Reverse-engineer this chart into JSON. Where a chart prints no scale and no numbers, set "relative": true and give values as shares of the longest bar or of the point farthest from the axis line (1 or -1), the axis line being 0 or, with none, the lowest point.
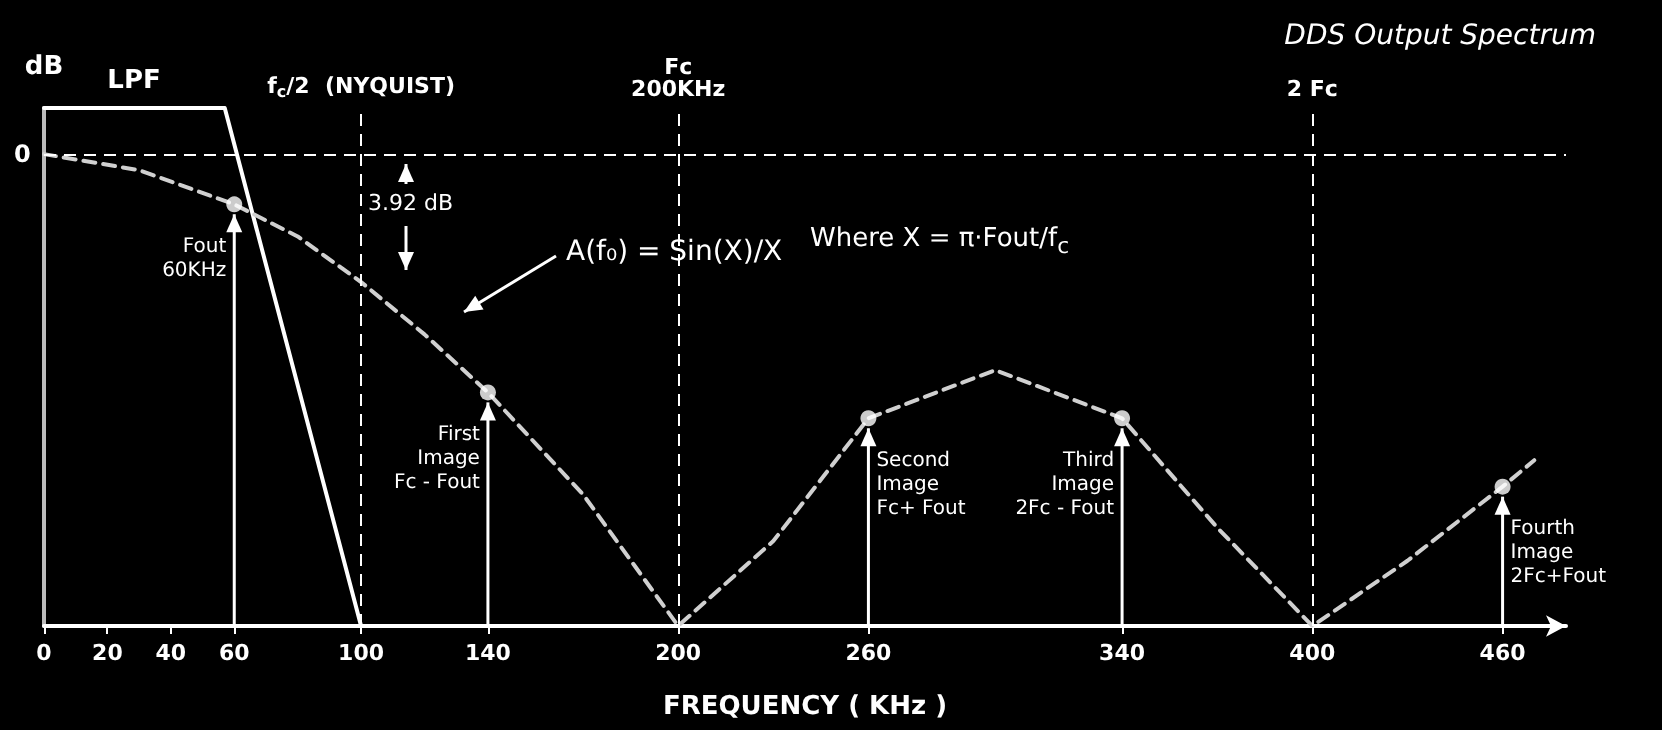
{
  "chart_data": {
    "type": "line",
    "title": "DDS Output Spectrum",
    "xlabel": "FREQUENCY ( KHz )",
    "ylabel": "dB",
    "relative": true,
    "grid": false,
    "legend": false,
    "xlim": [
      0,
      480
    ],
    "xticks": [
      0,
      20,
      40,
      60,
      100,
      140,
      200,
      260,
      340,
      400,
      460
    ],
    "series": [
      {
        "name": "LPF",
        "color": "#ffffff",
        "line_style": "solid",
        "marker": "none",
        "x": [
          0,
          57,
          100
        ],
        "values": [
          1,
          1,
          0
        ]
      },
      {
        "color": "#d0d0d0",
        "line_style": "dashed",
        "marker": "none",
        "x": [
          0,
          30,
          60,
          80,
          100,
          120,
          140,
          170,
          200,
          230,
          260,
          300,
          340,
          370,
          400,
          430,
          460,
          470
        ],
        "values": [
          0.911,
          0.88,
          0.814,
          0.752,
          0.664,
          0.563,
          0.451,
          0.254,
          0,
          0.164,
          0.401,
          0.494,
          0.401,
          0.19,
          0,
          0.126,
          0.269,
          0.32
        ]
      },
      {
        "type": "scatter",
        "color": "#ffffff",
        "marker": "circle",
        "x": [
          60,
          140,
          260,
          340,
          460
        ],
        "values": [
          0.814,
          0.451,
          0.401,
          0.401,
          0.269
        ]
      }
    ],
    "ref_lines": [
      {
        "axis": "y",
        "value": 0.911,
        "line_style": "dashed"
      },
      {
        "axis": "x",
        "value": 100,
        "label": "f$_{c}$/2  (NYQUIST)",
        "line_style": "dashed"
      },
      {
        "axis": "x",
        "value": 200,
        "label": "Fc\n200KHz",
        "line_style": "dashed"
      },
      {
        "axis": "x",
        "value": 400,
        "label": "2 Fc",
        "line_style": "dashed"
      }
    ],
    "annotations": [
      "A(f₀) = Sin(X)/X",
      "Where  X = π·Fout/f$_{c}$",
      "3.92 dB",
      "0",
      {
        "text": "Fout\n60KHz",
        "x": 60,
        "y": 0.814
      },
      {
        "text": "First\nImage\nFc - Fout",
        "x": 140,
        "y": 0.451
      },
      {
        "text": "Second\nImage\nFc+ Fout",
        "x": 260,
        "y": 0.401
      },
      {
        "text": "Third\nImage\n2Fc - Fout",
        "x": 340,
        "y": 0.401
      },
      {
        "text": "Fourth\nImage\n2Fc+Fout",
        "x": 460,
        "y": 0.269
      }
    ]
  }
}
